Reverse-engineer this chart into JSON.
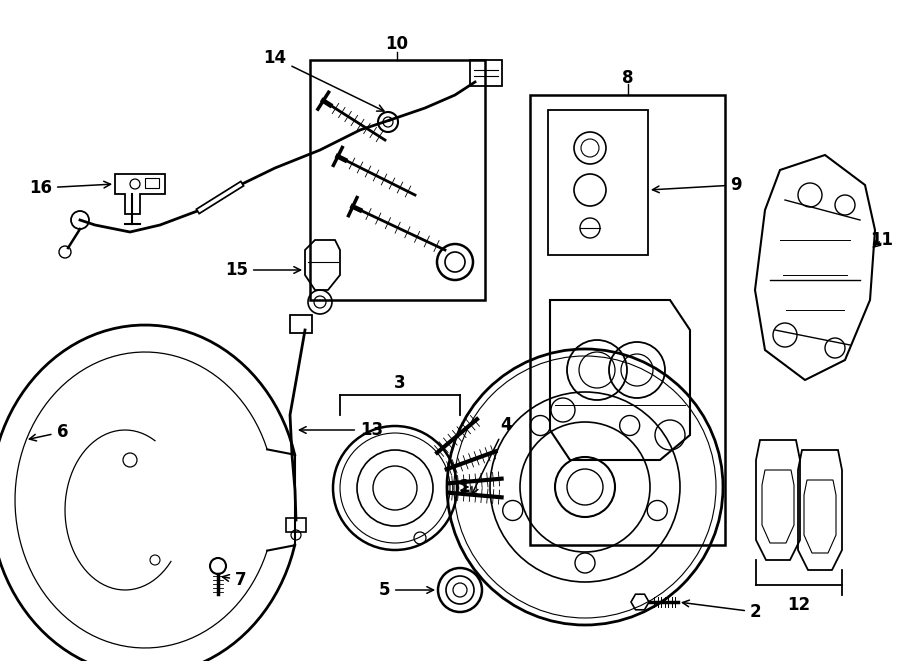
{
  "bg_color": "#ffffff",
  "line_color": "#000000",
  "lw": 1.3,
  "fig_w": 9.0,
  "fig_h": 6.61,
  "dpi": 100
}
